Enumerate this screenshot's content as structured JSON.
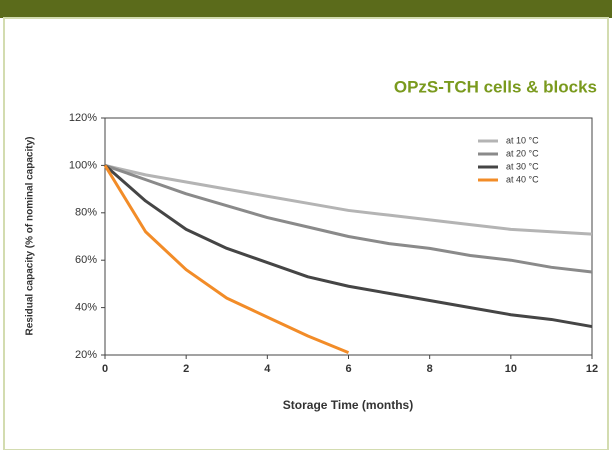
{
  "chart_data": {
    "type": "line",
    "title": "OPzS-TCH cells & blocks",
    "x_label": "Storage Time (months)",
    "y_label": "Residual capacity (% of nominal capacity)",
    "x": [
      0,
      1,
      2,
      3,
      4,
      5,
      6,
      7,
      8,
      9,
      10,
      11,
      12
    ],
    "series": [
      {
        "name": "at 10 °C",
        "color": "#b4b4b4",
        "values": [
          100,
          96,
          93,
          90,
          87,
          84,
          81,
          79,
          77,
          75,
          73,
          72,
          71
        ]
      },
      {
        "name": "at 20 °C",
        "color": "#8a8a8a",
        "values": [
          100,
          94,
          88,
          83,
          78,
          74,
          70,
          67,
          65,
          62,
          60,
          57,
          55
        ]
      },
      {
        "name": "at 30 °C",
        "color": "#454545",
        "values": [
          100,
          85,
          73,
          65,
          59,
          53,
          49,
          46,
          43,
          40,
          37,
          35,
          32
        ]
      },
      {
        "name": "at 40 °C",
        "color": "#f28c28",
        "values": [
          100,
          72,
          56,
          44,
          36,
          28,
          21,
          null,
          null,
          null,
          null,
          null,
          null
        ]
      }
    ],
    "xlim": [
      0,
      12
    ],
    "xticks": [
      0,
      2,
      4,
      6,
      8,
      10,
      12
    ],
    "ylim": [
      20,
      120
    ],
    "yticks": [
      {
        "value": 20,
        "label": "20%"
      },
      {
        "value": 40,
        "label": "40%"
      },
      {
        "value": 60,
        "label": "60%"
      },
      {
        "value": 80,
        "label": "80%"
      },
      {
        "value": 100,
        "label": "100%"
      },
      {
        "value": 120,
        "label": "120%"
      }
    ],
    "grid": false,
    "legend": "upper right"
  }
}
